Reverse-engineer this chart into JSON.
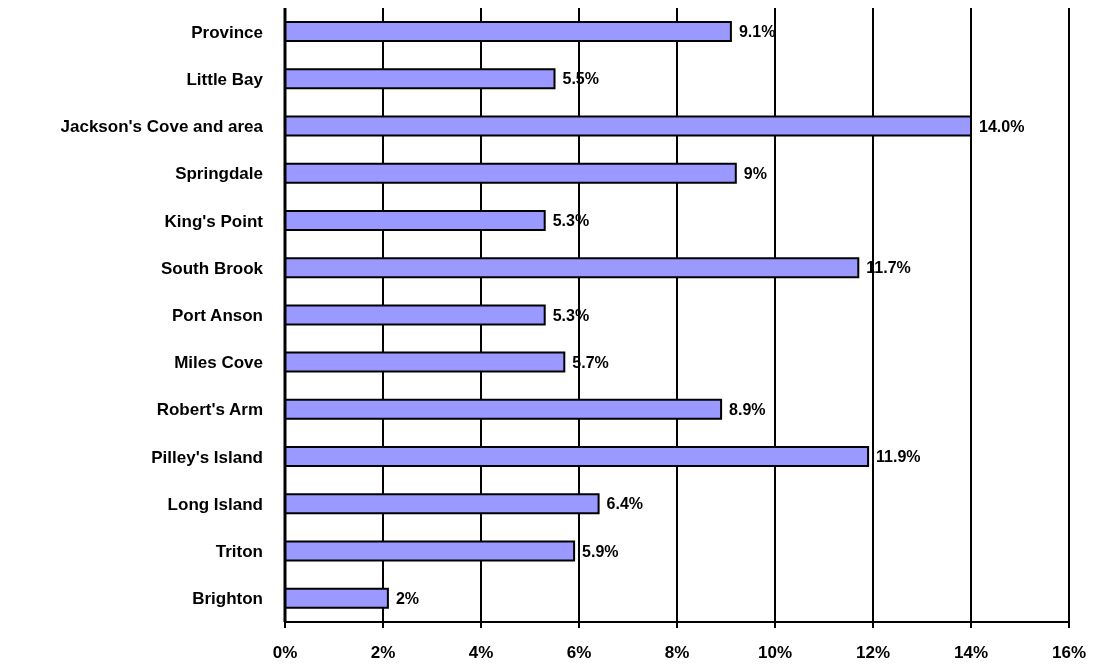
{
  "chart_data": {
    "type": "bar",
    "orientation": "horizontal",
    "categories": [
      "Province",
      "Little Bay",
      "Jackson's Cove and area",
      "Springdale",
      "King's Point",
      "South Brook",
      "Port Anson",
      "Miles Cove",
      "Robert's Arm",
      "Pilley's Island",
      "Long Island",
      "Triton",
      "Brighton"
    ],
    "values": [
      9.1,
      5.5,
      14.0,
      9.2,
      5.3,
      11.7,
      5.3,
      5.7,
      8.9,
      11.9,
      6.4,
      5.9,
      2.1
    ],
    "value_labels": [
      "9.1%",
      "5.5%",
      "14.0%",
      "9%",
      "5.3%",
      "11.7%",
      "5.3%",
      "5.7%",
      "8.9%",
      "11.9%",
      "6.4%",
      "5.9%",
      "2%"
    ],
    "color": "#9999ff",
    "xlim": [
      0,
      16
    ],
    "xticks": [
      {
        "value": 0,
        "label": "0%"
      },
      {
        "value": 2,
        "label": "2%"
      },
      {
        "value": 4,
        "label": "4%"
      },
      {
        "value": 6,
        "label": "6%"
      },
      {
        "value": 8,
        "label": "8%"
      },
      {
        "value": 10,
        "label": "10%"
      },
      {
        "value": 12,
        "label": "12%"
      },
      {
        "value": 14,
        "label": "14%"
      },
      {
        "value": 16,
        "label": "16%"
      }
    ],
    "grid": "x"
  }
}
